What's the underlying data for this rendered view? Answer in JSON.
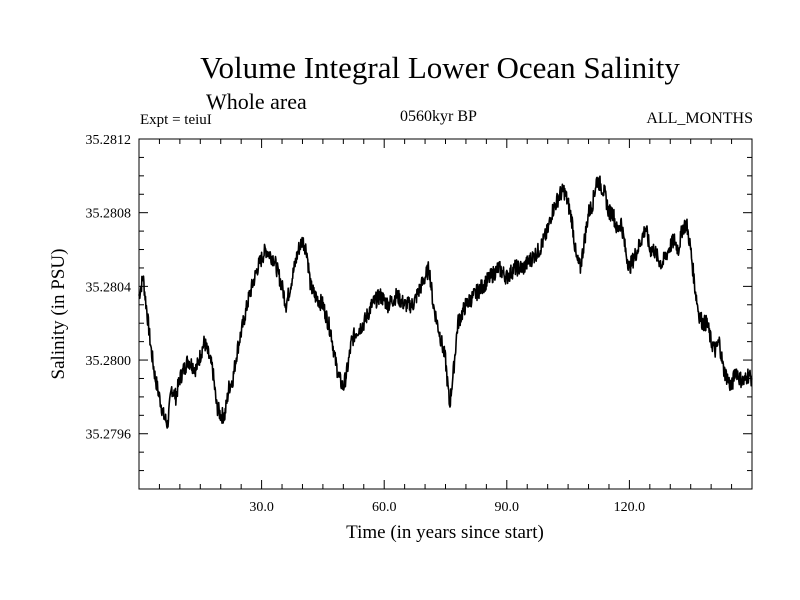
{
  "chart_data": {
    "type": "line",
    "title": "Volume Integral Lower Ocean Salinity",
    "subtitle": "Whole area",
    "experiment": "Expt = teiuI",
    "period": "0560kyr BP",
    "months": "ALL_MONTHS",
    "xlabel": "Time (in years since start)",
    "ylabel": "Salinity (in PSU)",
    "xlim": [
      0,
      150
    ],
    "ylim": [
      35.2793,
      35.2812
    ],
    "xticks": [
      {
        "value": 30,
        "label": "30.0"
      },
      {
        "value": 60,
        "label": "60.0"
      },
      {
        "value": 90,
        "label": "90.0"
      },
      {
        "value": 120,
        "label": "120.0"
      }
    ],
    "yticks": [
      {
        "value": 35.2796,
        "label": "35.2796"
      },
      {
        "value": 35.28,
        "label": "35.2800"
      },
      {
        "value": 35.2804,
        "label": "35.2804"
      },
      {
        "value": 35.2808,
        "label": "35.2808"
      },
      {
        "value": 35.2812,
        "label": "35.2812"
      }
    ],
    "series": [
      {
        "name": "salinity",
        "x": [
          0,
          1,
          2,
          3,
          4,
          5,
          6,
          7,
          8,
          9,
          10,
          12,
          14,
          16,
          18,
          19,
          20,
          21,
          22,
          23,
          24,
          25,
          26,
          27,
          29,
          31,
          33,
          35,
          36,
          37,
          38,
          39,
          40,
          41,
          42,
          43,
          45,
          47,
          48,
          49,
          50,
          51,
          52,
          53,
          55,
          57,
          59,
          61,
          63,
          65,
          67,
          69,
          70,
          71,
          72,
          73,
          74,
          75,
          76,
          77,
          78,
          80,
          82,
          84,
          86,
          88,
          90,
          92,
          94,
          96,
          98,
          100,
          101,
          102,
          103,
          104,
          105,
          106,
          107,
          108,
          109,
          110,
          111,
          112,
          113,
          114,
          115,
          116,
          117,
          118,
          119,
          120,
          122,
          124,
          125,
          126,
          127,
          128,
          129,
          130,
          131,
          132,
          133,
          134,
          135,
          136,
          137,
          138,
          139,
          140,
          141,
          142,
          143,
          144,
          145,
          146,
          147,
          148,
          149,
          150
        ],
        "values": [
          35.28035,
          35.28045,
          35.28025,
          35.28005,
          35.2799,
          35.2798,
          35.2797,
          35.27965,
          35.27985,
          35.2798,
          35.2799,
          35.28,
          35.27995,
          35.2801,
          35.27995,
          35.27975,
          35.2797,
          35.2797,
          35.27985,
          35.2799,
          35.28005,
          35.28015,
          35.28025,
          35.28035,
          35.2805,
          35.2806,
          35.28055,
          35.2804,
          35.2803,
          35.2804,
          35.2805,
          35.2806,
          35.28065,
          35.2806,
          35.2804,
          35.28035,
          35.2803,
          35.28015,
          35.28,
          35.2799,
          35.27985,
          35.27995,
          35.2801,
          35.28015,
          35.2802,
          35.2803,
          35.28035,
          35.2803,
          35.28035,
          35.2803,
          35.2803,
          35.2804,
          35.28045,
          35.2805,
          35.2803,
          35.2802,
          35.2801,
          35.28,
          35.27975,
          35.27995,
          35.2802,
          35.2803,
          35.28035,
          35.2804,
          35.28045,
          35.2805,
          35.28045,
          35.2805,
          35.2805,
          35.28055,
          35.2806,
          35.2807,
          35.2808,
          35.28085,
          35.2809,
          35.28092,
          35.28085,
          35.28075,
          35.28055,
          35.2805,
          35.28065,
          35.2808,
          35.28085,
          35.28098,
          35.28095,
          35.2809,
          35.2808,
          35.2808,
          35.2807,
          35.28075,
          35.2806,
          35.2805,
          35.2806,
          35.28072,
          35.2806,
          35.2806,
          35.28055,
          35.28052,
          35.28057,
          35.28062,
          35.28065,
          35.2806,
          35.28072,
          35.28074,
          35.2806,
          35.2804,
          35.28025,
          35.2802,
          35.2802,
          35.2801,
          35.28005,
          35.2801,
          35.27995,
          35.2799,
          35.27985,
          35.27995,
          35.2799,
          35.27988,
          35.27992,
          35.2799
        ]
      }
    ]
  }
}
